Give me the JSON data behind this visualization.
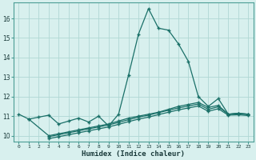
{
  "xlabel": "Humidex (Indice chaleur)",
  "background_color": "#d8f0ee",
  "grid_color": "#b0d8d4",
  "line_color": "#1a7068",
  "xlim": [
    -0.5,
    23.5
  ],
  "ylim": [
    9.7,
    16.8
  ],
  "xticks": [
    0,
    1,
    2,
    3,
    4,
    5,
    6,
    7,
    8,
    9,
    10,
    11,
    12,
    13,
    14,
    15,
    16,
    17,
    18,
    19,
    20,
    21,
    22,
    23
  ],
  "yticks": [
    10,
    11,
    12,
    13,
    14,
    15,
    16
  ],
  "series": [
    {
      "x": [
        0,
        1,
        2,
        3,
        4,
        5,
        6,
        7,
        8,
        9,
        10,
        11,
        12,
        13,
        14,
        15,
        16,
        17,
        18,
        19,
        20,
        21,
        22,
        23
      ],
      "y": [
        11.1,
        10.85,
        10.95,
        11.05,
        10.6,
        10.75,
        10.9,
        10.7,
        11.0,
        10.5,
        11.1,
        13.1,
        15.2,
        16.5,
        15.5,
        15.4,
        14.7,
        13.8,
        12.0,
        11.5,
        11.9,
        11.1,
        11.15,
        11.1
      ]
    },
    {
      "x": [
        1,
        3,
        4,
        5,
        6,
        7,
        8,
        9,
        10,
        11,
        12,
        13,
        14,
        15,
        16,
        17,
        18,
        19,
        20,
        21,
        22,
        23
      ],
      "y": [
        10.85,
        10.0,
        10.1,
        10.2,
        10.3,
        10.4,
        10.5,
        10.6,
        10.75,
        10.9,
        11.0,
        11.1,
        11.2,
        11.35,
        11.5,
        11.6,
        11.7,
        11.45,
        11.55,
        11.1,
        11.15,
        11.1
      ]
    },
    {
      "x": [
        3,
        4,
        5,
        6,
        7,
        8,
        9,
        10,
        11,
        12,
        13,
        14,
        15,
        16,
        17,
        18,
        19,
        20,
        21,
        22,
        23
      ],
      "y": [
        9.95,
        10.05,
        10.15,
        10.25,
        10.35,
        10.45,
        10.55,
        10.68,
        10.82,
        10.95,
        11.05,
        11.18,
        11.3,
        11.42,
        11.52,
        11.62,
        11.35,
        11.48,
        11.1,
        11.12,
        11.08
      ]
    },
    {
      "x": [
        3,
        4,
        5,
        6,
        7,
        8,
        9,
        10,
        11,
        12,
        13,
        14,
        15,
        16,
        17,
        18,
        19,
        20,
        21,
        22,
        23
      ],
      "y": [
        9.85,
        9.95,
        10.05,
        10.15,
        10.25,
        10.35,
        10.45,
        10.58,
        10.72,
        10.85,
        10.95,
        11.08,
        11.2,
        11.32,
        11.42,
        11.52,
        11.25,
        11.38,
        11.05,
        11.07,
        11.03
      ]
    }
  ]
}
